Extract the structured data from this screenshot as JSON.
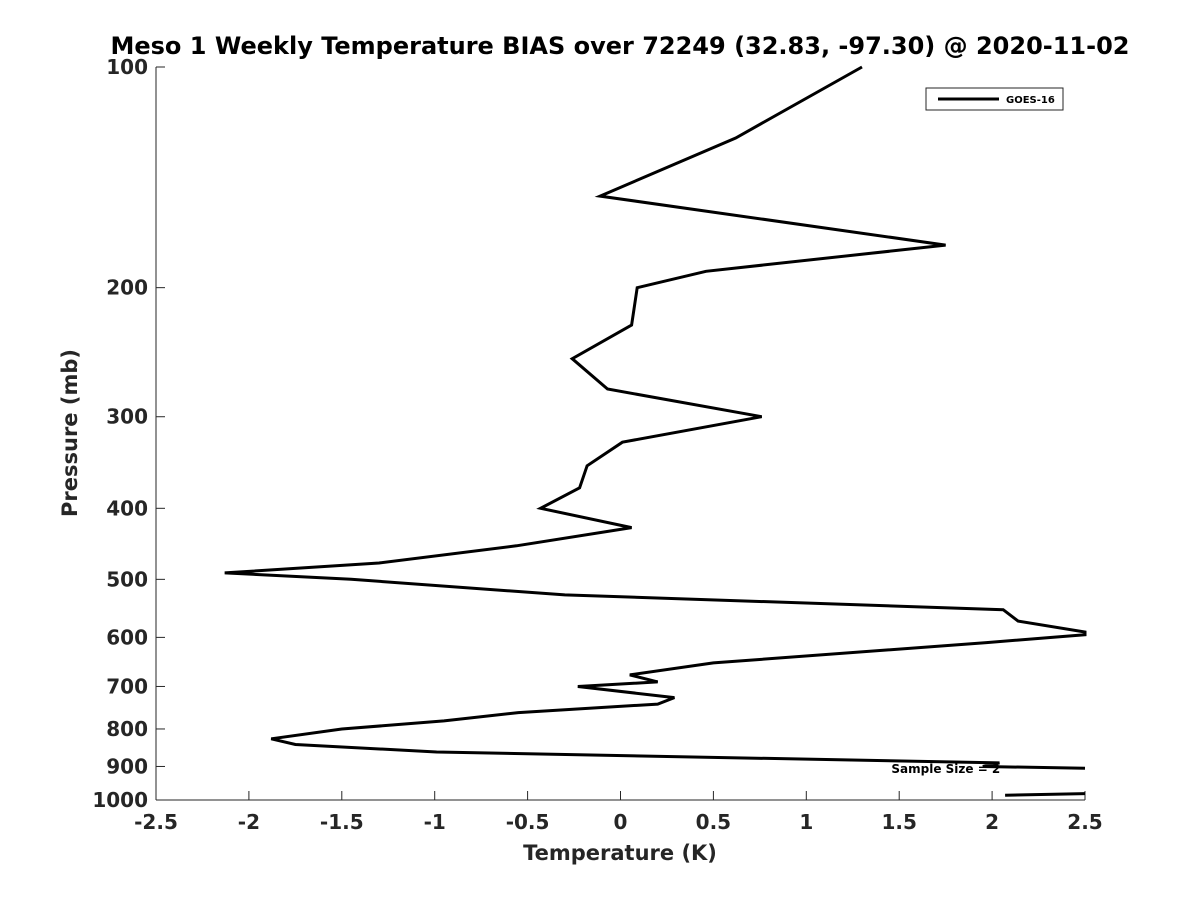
{
  "chart_data": {
    "type": "line",
    "title": "Meso 1 Weekly Temperature BIAS over 72249 (32.83, -97.30) @ 2020-11-02",
    "xlabel": "Temperature (K)",
    "ylabel": "Pressure (mb)",
    "xlim": [
      -2.5,
      2.5
    ],
    "ylim": [
      100,
      1000
    ],
    "y_scale": "log",
    "y_reversed": true,
    "x_ticks": [
      -2.5,
      -2,
      -1.5,
      -1,
      -0.5,
      0,
      0.5,
      1,
      1.5,
      2,
      2.5
    ],
    "x_tick_labels": [
      "-2.5",
      "-2",
      "-1.5",
      "-1",
      "-0.5",
      "0",
      "0.5",
      "1",
      "1.5",
      "2",
      "2.5"
    ],
    "y_ticks": [
      100,
      200,
      300,
      400,
      500,
      600,
      700,
      800,
      900,
      1000
    ],
    "y_tick_labels": [
      "100",
      "200",
      "300",
      "400",
      "500",
      "600",
      "700",
      "800",
      "900",
      "1000"
    ],
    "grid": false,
    "legend_position": "top-right",
    "series": [
      {
        "name": "GOES-16",
        "color": "#000000",
        "segments": [
          [
            [
              1.3,
              100
            ],
            [
              0.62,
              125
            ],
            [
              -0.11,
              150
            ],
            [
              1.75,
              175
            ],
            [
              0.46,
              190
            ],
            [
              0.09,
              200
            ],
            [
              0.06,
              225
            ],
            [
              -0.26,
              250
            ],
            [
              -0.07,
              275
            ],
            [
              0.76,
              300
            ],
            [
              0.01,
              325
            ],
            [
              -0.18,
              350
            ],
            [
              -0.22,
              375
            ],
            [
              -0.43,
              400
            ],
            [
              0.06,
              425
            ],
            [
              -0.56,
              450
            ],
            [
              -1.3,
              475
            ],
            [
              -2.13,
              490
            ],
            [
              -1.45,
              500
            ],
            [
              -0.3,
              525
            ],
            [
              2.06,
              550
            ],
            [
              2.14,
              570
            ],
            [
              2.5,
              590
            ],
            [
              2.5,
              595
            ],
            [
              1.97,
              610
            ],
            [
              0.5,
              650
            ],
            [
              0.05,
              675
            ],
            [
              0.2,
              690
            ],
            [
              -0.23,
              700
            ],
            [
              0.29,
              725
            ],
            [
              0.2,
              740
            ],
            [
              -0.55,
              760
            ],
            [
              -0.95,
              780
            ],
            [
              -1.5,
              800
            ],
            [
              -1.88,
              825
            ],
            [
              -1.75,
              840
            ],
            [
              -0.99,
              860
            ],
            [
              2.04,
              890
            ],
            [
              1.95,
              900
            ],
            [
              2.5,
              905
            ]
          ],
          [
            [
              2.07,
              985
            ],
            [
              2.5,
              980
            ]
          ]
        ]
      }
    ],
    "annotations": [
      {
        "text": "Sample Size = 2",
        "x": 2.05,
        "y": 905
      }
    ]
  }
}
